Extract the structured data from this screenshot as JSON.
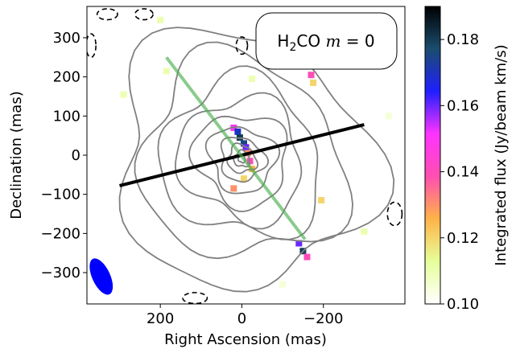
{
  "chart_data": {
    "type": "heatmap",
    "title": "",
    "annotation": {
      "species": "H",
      "sub": "2",
      "rest": "CO ",
      "var": "m",
      "eq": " = 0"
    },
    "xlabel": "Right Ascension (mas)",
    "ylabel": "Declination (mas)",
    "xlim": [
      380,
      -400
    ],
    "ylim": [
      -380,
      380
    ],
    "xticks": [
      200,
      0,
      -200
    ],
    "xtick_labels": [
      "200",
      "0",
      "−200"
    ],
    "yticks": [
      300,
      200,
      100,
      0,
      -100,
      -200,
      -300
    ],
    "ytick_labels": [
      "300",
      "200",
      "100",
      "0",
      "−100",
      "−200",
      "−300"
    ],
    "colorbar": {
      "label": "Integrated flux (Jy/beam km/s)",
      "range": [
        0.1,
        0.19
      ],
      "ticks": [
        0.1,
        0.12,
        0.14,
        0.16,
        0.18
      ],
      "tick_labels": [
        "0.10",
        "0.12",
        "0.14",
        "0.16",
        "0.18"
      ],
      "colors": [
        "#ffffff",
        "#e6ff99",
        "#ffb347",
        "#ff4fb0",
        "#ff33ff",
        "#1f1fff",
        "#1a4d6e",
        "#000000"
      ]
    },
    "lines": [
      {
        "name": "black-line",
        "color": "#000000",
        "x": [
          300,
          -300
        ],
        "y": [
          -78,
          78
        ]
      },
      {
        "name": "green-line",
        "color": "#4caf50",
        "x": [
          185,
          -155
        ],
        "y": [
          250,
          -215
        ]
      }
    ],
    "beam": {
      "x": 345,
      "y": -310,
      "major": 100,
      "minor": 44,
      "pa_deg": 25,
      "color": "#0000ff"
    },
    "contours_solid": [
      8,
      18,
      32,
      50,
      75,
      105,
      140,
      180,
      230,
      290
    ],
    "contours_dashed": [
      {
        "cx": 330,
        "cy": 360,
        "rx": 25,
        "ry": 14
      },
      {
        "cx": 240,
        "cy": 360,
        "rx": 22,
        "ry": 14
      },
      {
        "cx": 370,
        "cy": 280,
        "rx": 12,
        "ry": 30
      },
      {
        "cx": 115,
        "cy": -365,
        "rx": 30,
        "ry": 14
      },
      {
        "cx": -375,
        "cy": -150,
        "rx": 18,
        "ry": 30
      },
      {
        "cx": 0,
        "cy": 280,
        "rx": 14,
        "ry": 22
      }
    ],
    "pixels": [
      {
        "x": 20,
        "y": 70,
        "v": 0.15
      },
      {
        "x": 10,
        "y": 60,
        "v": 0.17
      },
      {
        "x": 5,
        "y": 45,
        "v": 0.18
      },
      {
        "x": -5,
        "y": 30,
        "v": 0.175
      },
      {
        "x": -10,
        "y": 20,
        "v": 0.16
      },
      {
        "x": -15,
        "y": 5,
        "v": 0.13
      },
      {
        "x": -20,
        "y": -15,
        "v": 0.14
      },
      {
        "x": -25,
        "y": -35,
        "v": 0.125
      },
      {
        "x": 20,
        "y": -85,
        "v": 0.13
      },
      {
        "x": -140,
        "y": -225,
        "v": 0.16
      },
      {
        "x": -150,
        "y": -245,
        "v": 0.18
      },
      {
        "x": -160,
        "y": -260,
        "v": 0.14
      },
      {
        "x": -170,
        "y": 205,
        "v": 0.14
      },
      {
        "x": -175,
        "y": 185,
        "v": 0.12
      },
      {
        "x": 185,
        "y": 215,
        "v": 0.11
      },
      {
        "x": 290,
        "y": 155,
        "v": 0.11
      },
      {
        "x": -195,
        "y": -115,
        "v": 0.12
      },
      {
        "x": -300,
        "y": -195,
        "v": 0.11
      },
      {
        "x": 200,
        "y": 345,
        "v": 0.11
      },
      {
        "x": -25,
        "y": 195,
        "v": 0.11
      },
      {
        "x": -5,
        "y": -60,
        "v": 0.12
      },
      {
        "x": -100,
        "y": -330,
        "v": 0.105
      },
      {
        "x": -360,
        "y": 100,
        "v": 0.105
      }
    ]
  }
}
